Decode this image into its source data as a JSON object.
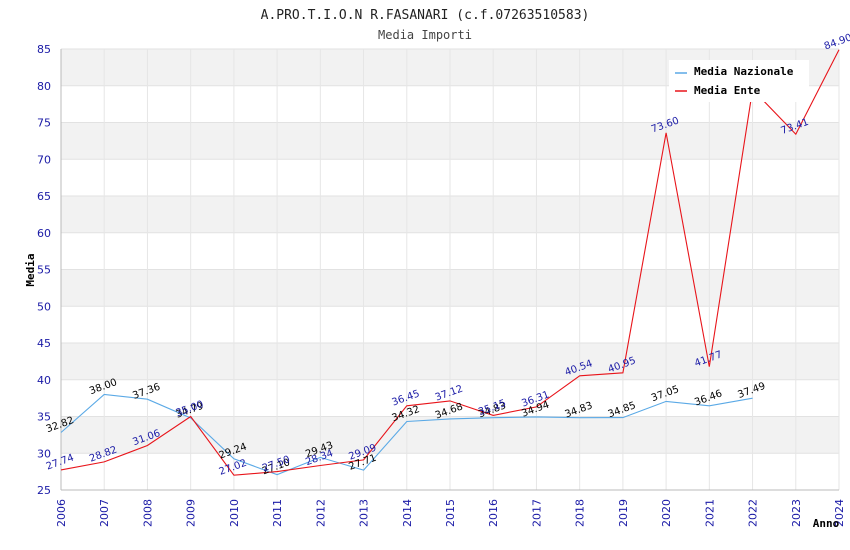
{
  "chart_data": {
    "type": "line",
    "title": "A.PRO.T.I.O.N R.FASANARI (c.f.07263510583)",
    "subtitle": "Media Importi",
    "xlabel": "Anno",
    "ylabel": "Media",
    "ylim": [
      25,
      85
    ],
    "yticks": [
      25,
      30,
      35,
      40,
      45,
      50,
      55,
      60,
      65,
      70,
      75,
      80,
      85
    ],
    "x": [
      "2006",
      "2007",
      "2008",
      "2009",
      "2010",
      "2011",
      "2012",
      "2013",
      "2014",
      "2015",
      "2016",
      "2017",
      "2018",
      "2019",
      "2020",
      "2021",
      "2022",
      "2023",
      "2024"
    ],
    "legend_position": "top-right",
    "grid": true,
    "series": [
      {
        "name": "Media Nazionale",
        "color": "#5aa9e6",
        "values": [
          32.82,
          38.0,
          37.36,
          34.79,
          29.24,
          27.1,
          29.43,
          27.71,
          34.32,
          34.68,
          34.83,
          34.94,
          34.83,
          34.85,
          37.05,
          36.46,
          37.49,
          null,
          null
        ],
        "labels": [
          "32.82",
          "38.00",
          "37.36",
          "34.79",
          "29.24",
          "27.10",
          "29.43",
          "27.71",
          "34.32",
          "34.68",
          "34.83",
          "34.94",
          "34.83",
          "34.85",
          "37.05",
          "36.46",
          "37.49",
          null,
          null
        ]
      },
      {
        "name": "Media Ente",
        "color": "#e8141a",
        "values": [
          27.74,
          28.82,
          31.06,
          35.0,
          27.02,
          27.5,
          28.34,
          29.09,
          36.45,
          37.12,
          35.15,
          36.31,
          40.54,
          40.95,
          73.6,
          41.77,
          79.5,
          73.41,
          84.9
        ],
        "labels": [
          "27.74",
          "28.82",
          "31.06",
          "35.00",
          "27.02",
          "27.50",
          "28.34",
          "29.09",
          "36.45",
          "37.12",
          "35.15",
          "36.31",
          "40.54",
          "40.95",
          "73.60",
          "41.77",
          null,
          "73.41",
          "84.90"
        ]
      }
    ]
  }
}
